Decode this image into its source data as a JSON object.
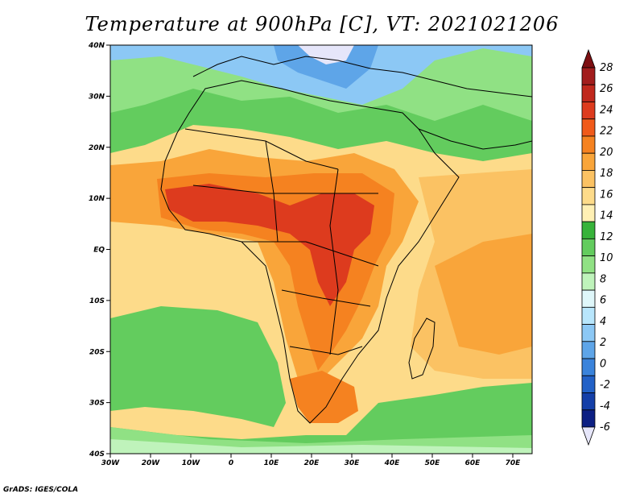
{
  "title": "Temperature at 900hPa [C], VT: 2021021206",
  "credit": "GrADS: IGES/COLA",
  "map": {
    "lat_labels": [
      "40N",
      "30N",
      "20N",
      "10N",
      "EQ",
      "10S",
      "20S",
      "30S",
      "40S"
    ],
    "lon_labels": [
      "30W",
      "20W",
      "10W",
      "0",
      "10E",
      "20E",
      "30E",
      "40E",
      "50E",
      "60E",
      "70E"
    ]
  },
  "colorbar": {
    "labels": [
      "28",
      "26",
      "24",
      "22",
      "20",
      "18",
      "16",
      "14",
      "12",
      "10",
      "8",
      "6",
      "4",
      "2",
      "0",
      "-2",
      "-4",
      "-6"
    ],
    "colors": [
      "#7d0f12",
      "#a21d1d",
      "#c0281d",
      "#dd3b1e",
      "#f05a1a",
      "#f58220",
      "#f9a53a",
      "#fbc263",
      "#fddb8a",
      "#fff0b4",
      "#37b33a",
      "#63cc5e",
      "#90e184",
      "#bff3bb",
      "#dff7fa",
      "#b8e6fc",
      "#8cc8f5",
      "#5ea5e8",
      "#3a83db",
      "#2261c7",
      "#143fa8",
      "#0c1f83",
      "#e6e6fa"
    ]
  },
  "fields": {
    "background_color": "#fddb8a",
    "hot_color": "#f58220",
    "hottest_color": "#dd3b1e",
    "cool_color": "#63cc5e",
    "cold_color": "#8cc8f5"
  }
}
